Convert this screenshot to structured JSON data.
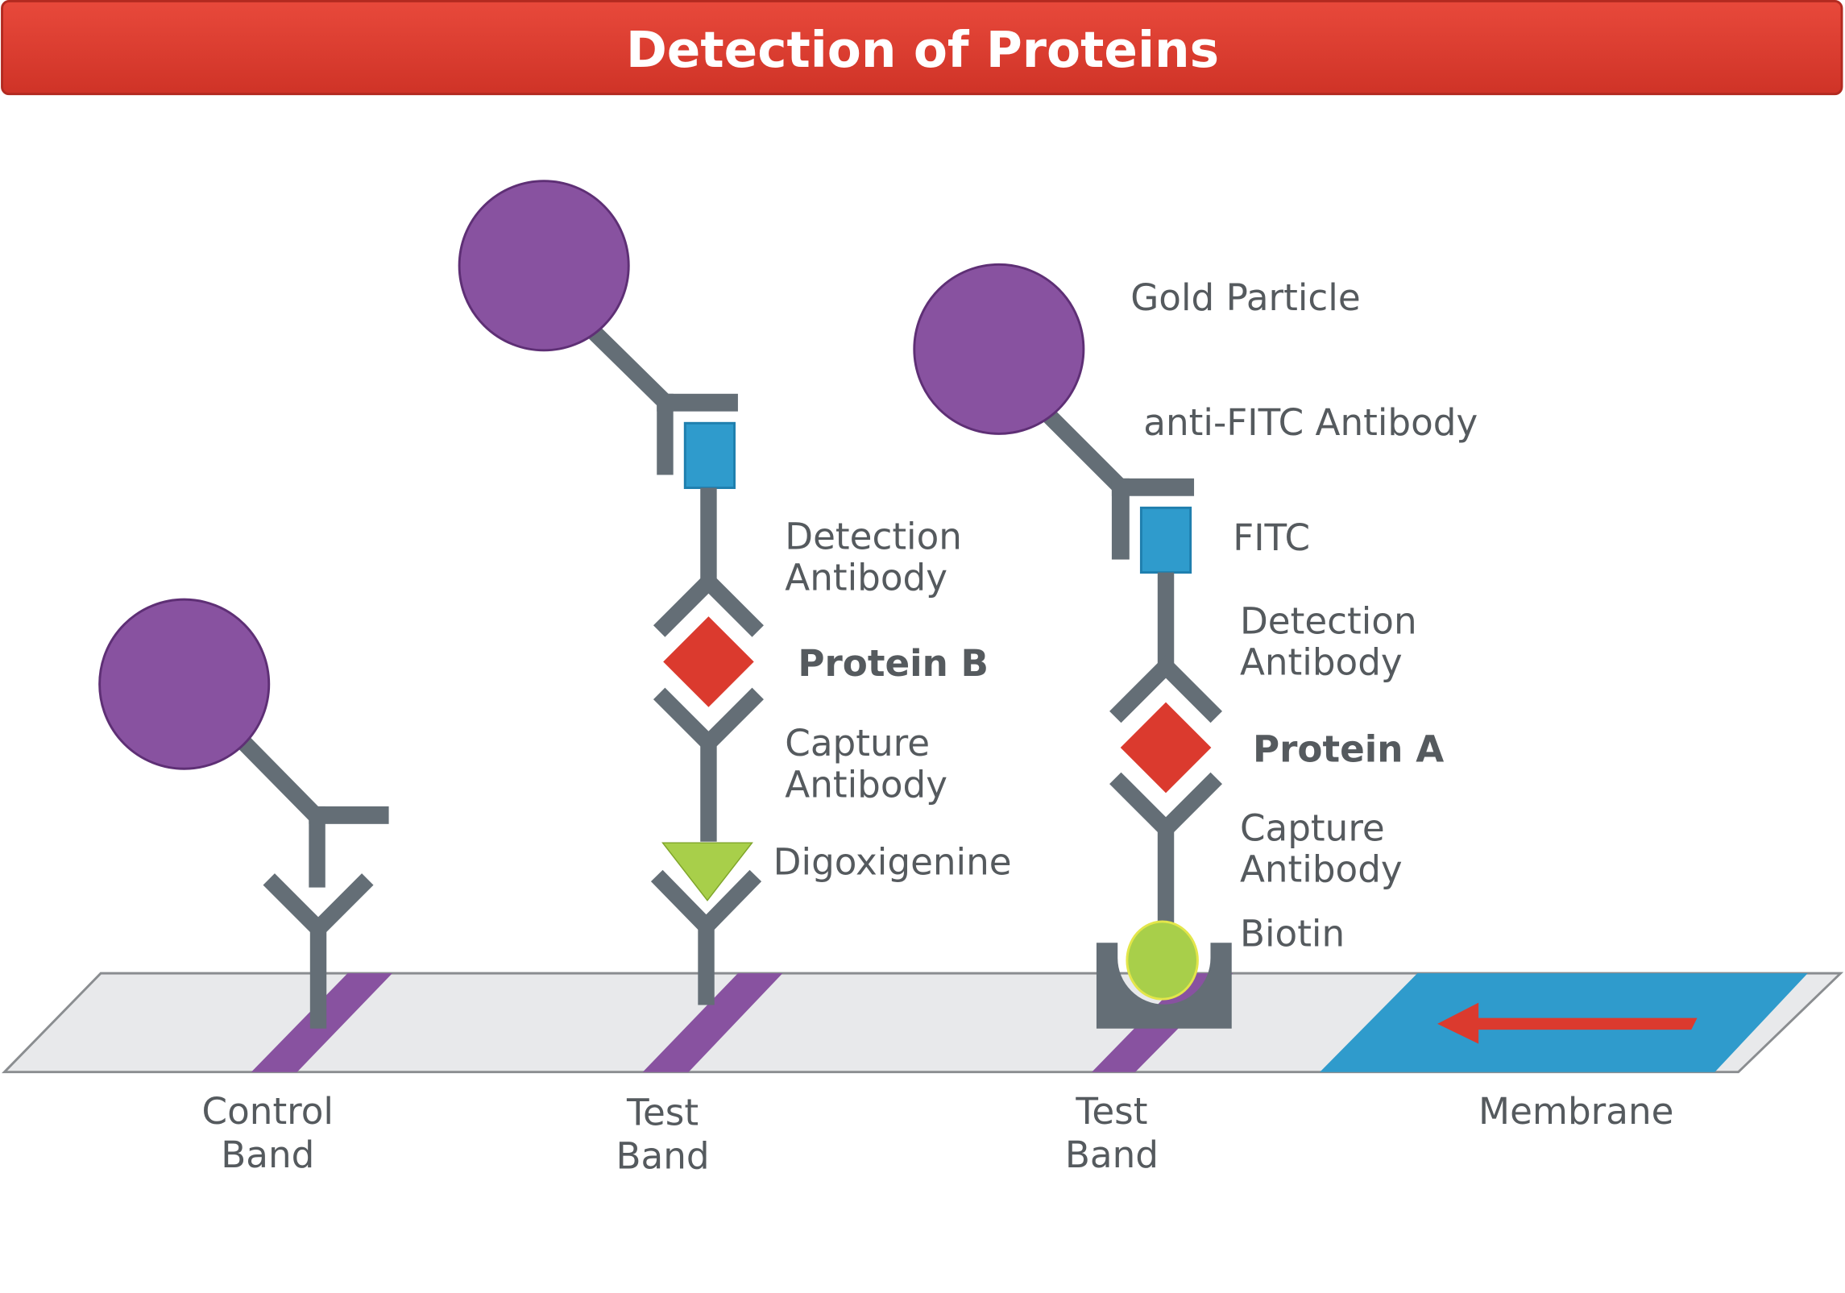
{
  "title": "Detection of Proteins",
  "colors": {
    "title_bar": "#db3a2e",
    "gold_particle": "#8852a0",
    "antibody": "#646e76",
    "fitc": "#2f9bcc",
    "protein": "#db3a2e",
    "digoxigenine": "#a8cf4a",
    "biotin": "#a8cf4a",
    "membrane": "#2f9bcc",
    "strip": "#e8e9eb",
    "band": "#8852a0"
  },
  "labels": {
    "gold_particle": "Gold Particle",
    "anti_fitc_antibody": "anti-FITC Antibody",
    "fitc": "FITC",
    "detection_antibody": [
      "Detection",
      "Antibody"
    ],
    "capture_antibody": [
      "Capture",
      "Antibody"
    ],
    "protein_b": "Protein B",
    "protein_a": "Protein A",
    "digoxigenine": "Digoxigenine",
    "biotin": "Biotin"
  },
  "strip_labels": {
    "control_band": [
      "Control",
      "Band"
    ],
    "test_band": [
      "Test",
      "Band"
    ],
    "membrane": "Membrane"
  },
  "flow_direction": "left"
}
